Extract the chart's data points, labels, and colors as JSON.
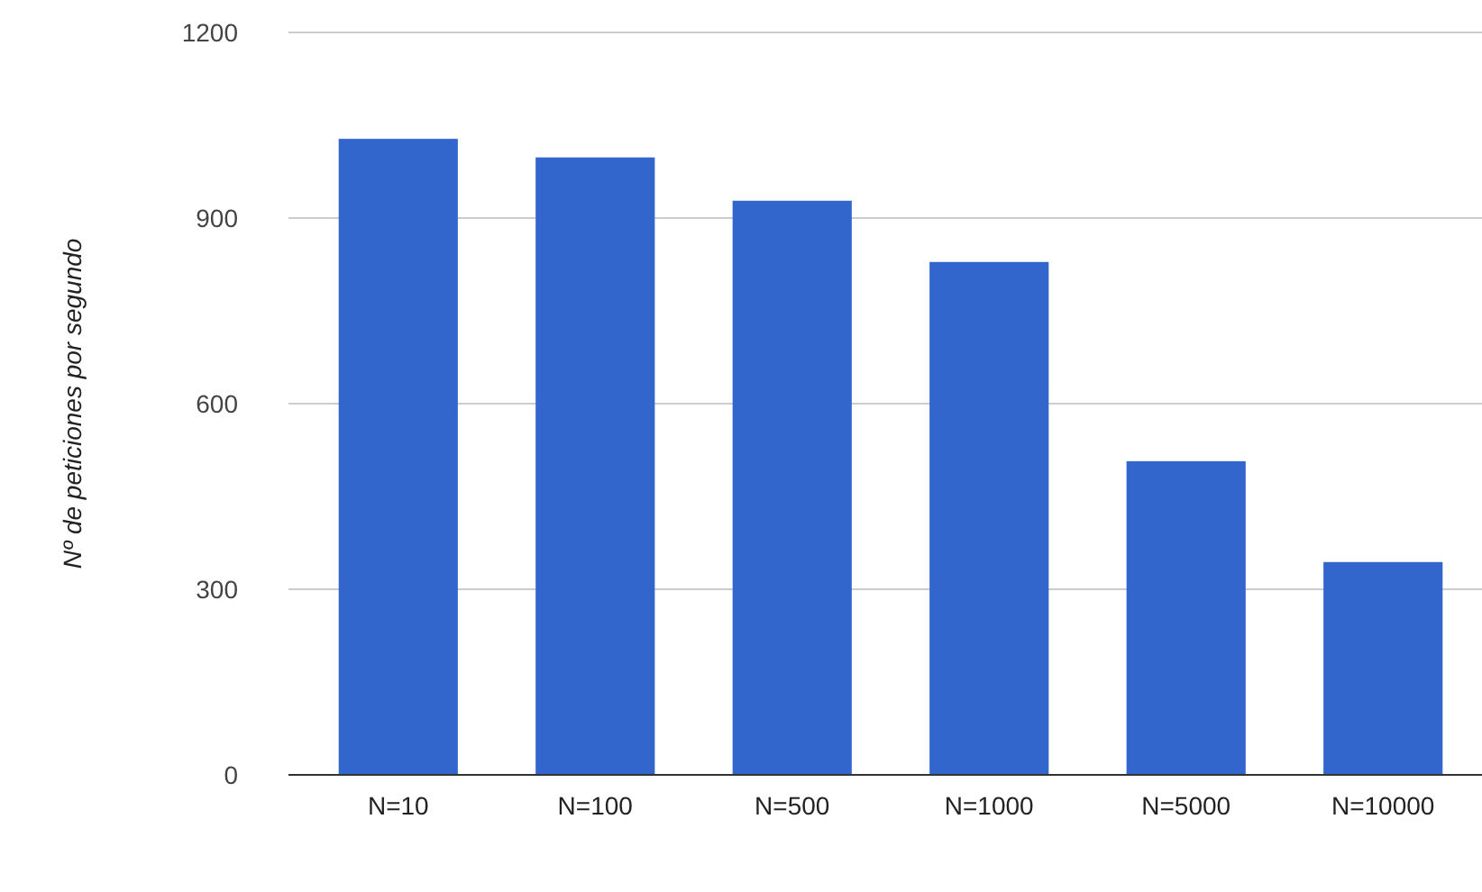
{
  "chart_data": {
    "type": "bar",
    "ylabel": "Nº de peticiones por segundo",
    "categories": [
      "N=10",
      "N=100",
      "N=500",
      "N=1000",
      "N=5000",
      "N=10000"
    ],
    "values": [
      1028,
      998,
      928,
      829,
      507,
      344
    ],
    "color": "#3366cc",
    "ylim": [
      0,
      1200
    ],
    "yticks": [
      0,
      300,
      600,
      900,
      1200
    ],
    "grid": "y"
  }
}
